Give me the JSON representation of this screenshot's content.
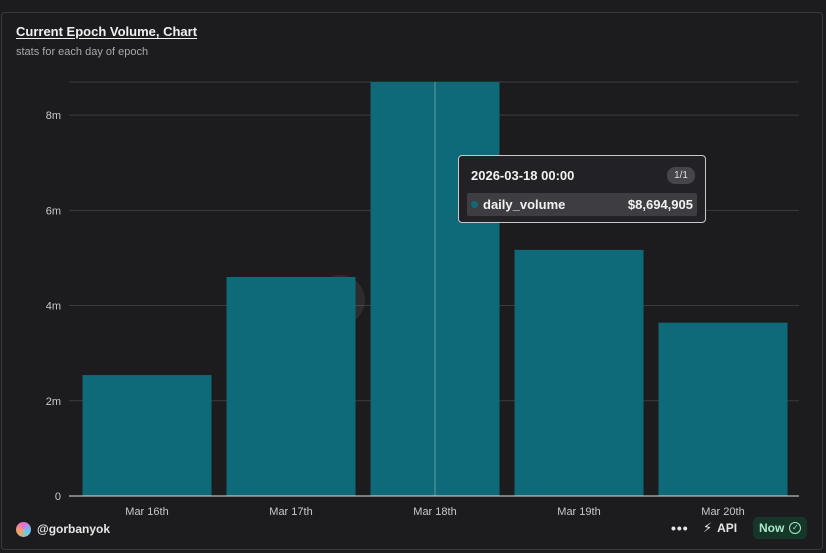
{
  "header": {
    "title": "Current Epoch Volume, Chart",
    "subtitle": "stats for each day of epoch"
  },
  "chart_data": {
    "type": "bar",
    "title": "Current Epoch Volume, Chart",
    "subtitle": "stats for each day of epoch",
    "categories": [
      "Mar 16th",
      "Mar 17th",
      "Mar 18th",
      "Mar 19th",
      "Mar 20th"
    ],
    "series": [
      {
        "name": "daily_volume",
        "values": [
          2540000,
          4600000,
          8694905,
          5170000,
          3640000
        ]
      }
    ],
    "xlabel": "",
    "ylabel": "",
    "ylim": [
      0,
      8694905
    ],
    "yticks": [
      {
        "value": 0,
        "label": "0"
      },
      {
        "value": 2000000,
        "label": "2m"
      },
      {
        "value": 4000000,
        "label": "4m"
      },
      {
        "value": 6000000,
        "label": "6m"
      },
      {
        "value": 8000000,
        "label": "8m"
      }
    ],
    "grid": true,
    "highlighted_index": 2,
    "watermark": "Dune",
    "colors": {
      "bar": "#0e6a79",
      "grid": "#3b3b3f",
      "axis": "#e0e0e0",
      "tick_label": "#c9c9cc"
    }
  },
  "tooltip": {
    "date": "2026-03-18 00:00",
    "page": "1/1",
    "series": "daily_volume",
    "value": "$8,694,905",
    "dot_color": "#0e6a79"
  },
  "footer": {
    "handle": "@gorbanyok",
    "more_icon": "more-icon",
    "api_label": "API",
    "api_icon": "plug-icon",
    "now_label": "Now",
    "now_icon": "check-circle-icon"
  }
}
